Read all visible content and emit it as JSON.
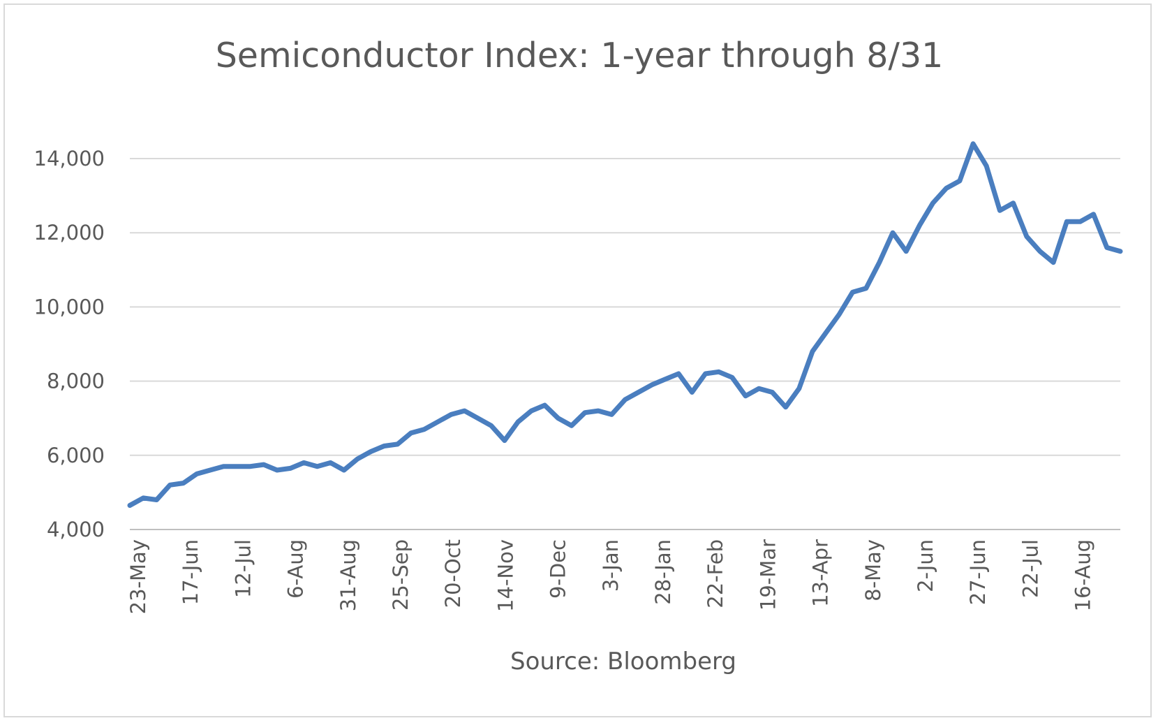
{
  "chart_data": {
    "type": "line",
    "title": "Semiconductor Index: 1-year through 8/31",
    "xlabel": "Source: Bloomberg",
    "ylabel": "",
    "ylim": [
      4000,
      14000
    ],
    "y_ticks": [
      4000,
      6000,
      8000,
      10000,
      12000,
      14000
    ],
    "y_tick_labels": [
      "4,000",
      "6,000",
      "8,000",
      "10,000",
      "12,000",
      "14,000"
    ],
    "x_ticks": [
      "23-May",
      "17-Jun",
      "12-Jul",
      "6-Aug",
      "31-Aug",
      "25-Sep",
      "20-Oct",
      "14-Nov",
      "9-Dec",
      "3-Jan",
      "28-Jan",
      "22-Feb",
      "19-Mar",
      "13-Apr",
      "8-May",
      "2-Jun",
      "27-Jun",
      "22-Jul",
      "16-Aug"
    ],
    "grid": true,
    "legend": "none",
    "color": "#4a7ebf",
    "series": [
      {
        "x": [
          "23-May",
          "30-May",
          "6-Jun",
          "13-Jun",
          "17-Jun",
          "24-Jun",
          "1-Jul",
          "8-Jul",
          "12-Jul",
          "19-Jul",
          "26-Jul",
          "2-Aug",
          "6-Aug",
          "13-Aug",
          "20-Aug",
          "27-Aug",
          "31-Aug",
          "7-Sep",
          "14-Sep",
          "21-Sep",
          "25-Sep",
          "2-Oct",
          "9-Oct",
          "16-Oct",
          "20-Oct",
          "27-Oct",
          "3-Nov",
          "10-Nov",
          "14-Nov",
          "21-Nov",
          "28-Nov",
          "5-Dec",
          "9-Dec",
          "16-Dec",
          "23-Dec",
          "30-Dec",
          "3-Jan",
          "10-Jan",
          "17-Jan",
          "24-Jan",
          "28-Jan",
          "4-Feb",
          "11-Feb",
          "18-Feb",
          "22-Feb",
          "29-Feb",
          "7-Mar",
          "14-Mar",
          "19-Mar",
          "26-Mar",
          "2-Apr",
          "9-Apr",
          "13-Apr",
          "20-Apr",
          "27-Apr",
          "4-May",
          "8-May",
          "15-May",
          "22-May",
          "29-May",
          "2-Jun",
          "9-Jun",
          "16-Jun",
          "23-Jun",
          "27-Jun",
          "4-Jul",
          "11-Jul",
          "18-Jul",
          "22-Jul",
          "29-Jul",
          "5-Aug",
          "12-Aug",
          "16-Aug",
          "23-Aug",
          "31-Aug"
        ],
        "values": [
          4650,
          4850,
          4800,
          5200,
          5250,
          5500,
          5600,
          5700,
          5700,
          5700,
          5750,
          5600,
          5650,
          5800,
          5700,
          5800,
          5600,
          5900,
          6100,
          6250,
          6300,
          6600,
          6700,
          6900,
          7100,
          7200,
          7000,
          6800,
          6400,
          6900,
          7200,
          7350,
          7000,
          6800,
          7150,
          7200,
          7100,
          7500,
          7700,
          7900,
          8050,
          8200,
          7700,
          8200,
          8250,
          8100,
          7600,
          7800,
          7700,
          7300,
          7800,
          8800,
          9300,
          9800,
          10400,
          10500,
          11200,
          12000,
          11500,
          12200,
          12800,
          13200,
          13400,
          14400,
          13800,
          12600,
          12800,
          11900,
          11500,
          11200,
          12300,
          12300,
          12500,
          11600,
          11500
        ]
      }
    ]
  }
}
